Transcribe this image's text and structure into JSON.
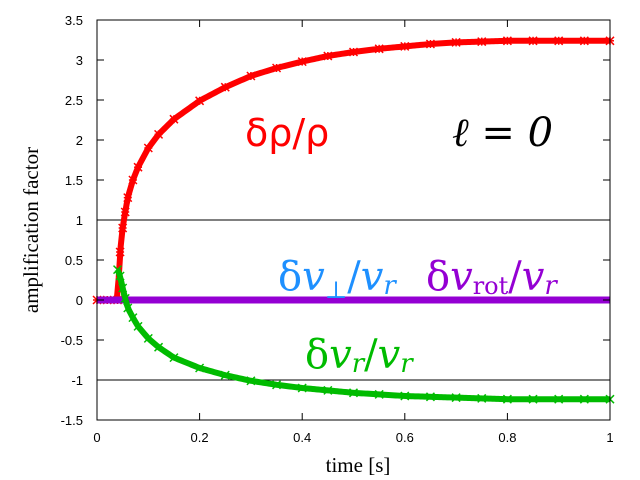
{
  "chart_data": {
    "type": "scatter",
    "xlabel": "time [s]",
    "ylabel": "amplification factor",
    "xlim": [
      0,
      1
    ],
    "ylim": [
      -1.5,
      3.5
    ],
    "x_ticks": [
      "0",
      "0.2",
      "0.4",
      "0.6",
      "0.8",
      "1"
    ],
    "y_ticks": [
      "-1.5",
      "-1",
      "-0.5",
      "0",
      "0.5",
      "1",
      "1.5",
      "2",
      "2.5",
      "3",
      "3.5"
    ],
    "reference_lines": [
      1,
      -1
    ],
    "grid": false,
    "series": [
      {
        "name": "δρ/ρ",
        "color": "#ff0000",
        "marker": "asterisk",
        "x": [
          0.0,
          0.02,
          0.04,
          0.045,
          0.05,
          0.055,
          0.06,
          0.07,
          0.08,
          0.1,
          0.12,
          0.15,
          0.2,
          0.25,
          0.3,
          0.35,
          0.4,
          0.45,
          0.5,
          0.55,
          0.6,
          0.65,
          0.7,
          0.75,
          0.8,
          0.85,
          0.9,
          0.95,
          1.0
        ],
        "y": [
          0.0,
          0.0,
          0.0,
          0.6,
          0.9,
          1.1,
          1.28,
          1.5,
          1.66,
          1.9,
          2.07,
          2.26,
          2.49,
          2.66,
          2.8,
          2.9,
          2.98,
          3.05,
          3.1,
          3.14,
          3.17,
          3.2,
          3.22,
          3.23,
          3.24,
          3.24,
          3.24,
          3.24,
          3.24
        ]
      },
      {
        "name": "δv⊥/vr",
        "color": "#1e90ff",
        "marker": "line",
        "x": [
          0.0,
          1.0
        ],
        "y": [
          0.0,
          0.0
        ]
      },
      {
        "name": "δvrot/vr",
        "color": "#9400d3",
        "marker": "line",
        "x": [
          0.0,
          1.0
        ],
        "y": [
          0.0,
          0.0
        ]
      },
      {
        "name": "δvr/vr",
        "color": "#00bb00",
        "marker": "x",
        "x": [
          0.04,
          0.045,
          0.05,
          0.055,
          0.06,
          0.07,
          0.08,
          0.1,
          0.12,
          0.15,
          0.2,
          0.25,
          0.3,
          0.35,
          0.4,
          0.45,
          0.5,
          0.55,
          0.6,
          0.65,
          0.7,
          0.75,
          0.8,
          0.85,
          0.9,
          0.95,
          1.0
        ],
        "y": [
          0.38,
          0.3,
          0.15,
          0.02,
          -0.1,
          -0.22,
          -0.33,
          -0.48,
          -0.59,
          -0.72,
          -0.85,
          -0.94,
          -1.01,
          -1.06,
          -1.1,
          -1.13,
          -1.16,
          -1.18,
          -1.2,
          -1.21,
          -1.22,
          -1.23,
          -1.24,
          -1.24,
          -1.24,
          -1.24,
          -1.24
        ]
      }
    ],
    "annotations": {
      "rho": {
        "prefix": "δρ/ρ",
        "color": "#ff0000"
      },
      "ell": {
        "text": "ℓ = 0",
        "color": "#000000"
      },
      "vperp": {
        "pre": "δ",
        "v1": "v",
        "sub": "⊥",
        "slash": "/",
        "v2": "v",
        "sub2": "r",
        "color": "#1e90ff"
      },
      "vrot": {
        "pre": "δ",
        "v1": "v",
        "sub": "rot",
        "slash": "/",
        "v2": "v",
        "sub2": "r",
        "color": "#9400d3"
      },
      "vr": {
        "pre": "δ",
        "v1": "v",
        "sub": "r",
        "slash": "/",
        "v2": "v",
        "sub2": "r",
        "color": "#00bb00"
      }
    }
  }
}
